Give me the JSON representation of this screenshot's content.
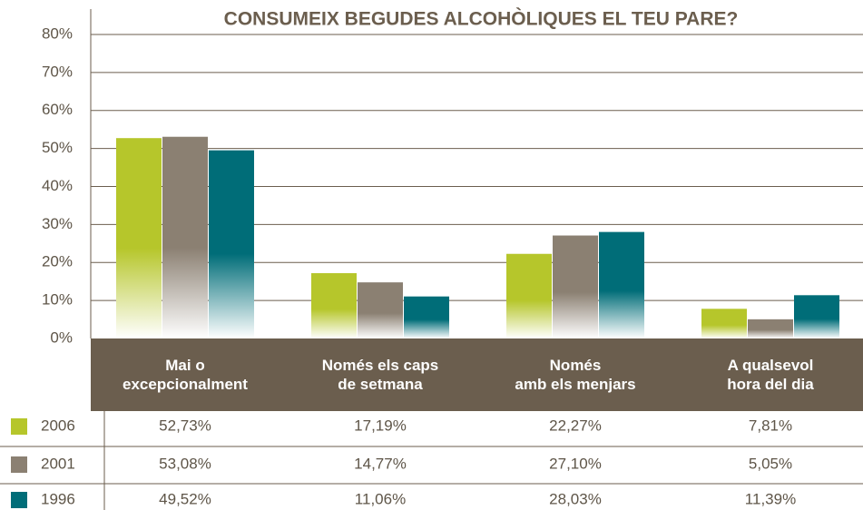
{
  "chart_data": {
    "type": "bar",
    "title": "CONSUMEIX BEGUDES ALCOHÒLIQUES EL TEU PARE?",
    "categories": [
      "Mai o\nexcepcionalment",
      "Només els caps\nde setmana",
      "Només\namb els menjars",
      "A qualsevol\nhora del dia"
    ],
    "series": [
      {
        "name": "2006",
        "color": "#b6c62b",
        "values": [
          52.73,
          17.19,
          22.27,
          7.81
        ],
        "value_labels": [
          "52,73%",
          "17,19%",
          "22,27%",
          "7,81%"
        ]
      },
      {
        "name": "2001",
        "color": "#8b8072",
        "values": [
          53.08,
          14.77,
          27.1,
          5.05
        ],
        "value_labels": [
          "53,08%",
          "14,77%",
          "27,10%",
          "5,05%"
        ]
      },
      {
        "name": "1996",
        "color": "#006d78",
        "values": [
          49.52,
          11.06,
          28.03,
          11.39
        ],
        "value_labels": [
          "49,52%",
          "11,06%",
          "28,03%",
          "11,39%"
        ]
      }
    ],
    "ylim": [
      0,
      80
    ],
    "yticks": [
      {
        "value": 0,
        "label": "0%"
      },
      {
        "value": 10,
        "label": "10%"
      },
      {
        "value": 20,
        "label": "20%"
      },
      {
        "value": 30,
        "label": "30%"
      },
      {
        "value": 40,
        "label": "40%"
      },
      {
        "value": 50,
        "label": "50%"
      },
      {
        "value": 60,
        "label": "60%"
      },
      {
        "value": 70,
        "label": "70%"
      },
      {
        "value": 80,
        "label": "80%"
      }
    ],
    "grid": true
  }
}
